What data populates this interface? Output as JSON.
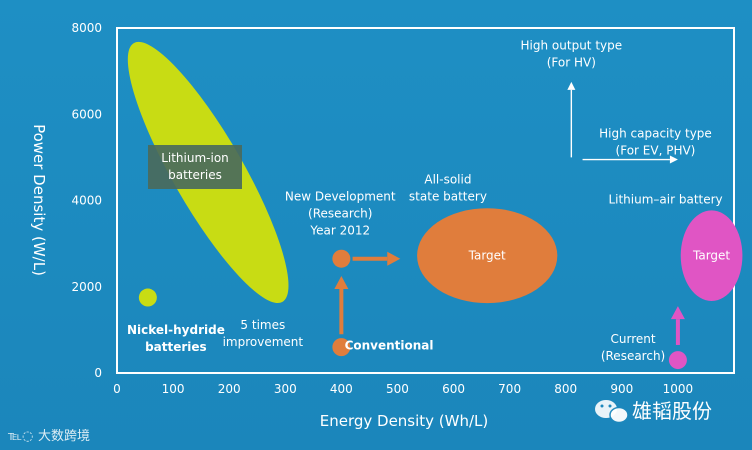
{
  "chart_data": {
    "type": "scatter",
    "xlabel": "Energy Density (Wh/L)",
    "ylabel": "Power Density (W/L)",
    "xlim": [
      0,
      1100
    ],
    "ylim": [
      0,
      8000
    ],
    "x_ticks": [
      0,
      100,
      200,
      300,
      400,
      500,
      600,
      700,
      800,
      900,
      1000
    ],
    "y_ticks": [
      0,
      2000,
      4000,
      6000,
      8000
    ],
    "regions": [
      {
        "name": "lithium-ion-region",
        "label": "Lithium-ion batteries",
        "label_lines": [
          "Lithium-ion",
          "batteries"
        ],
        "shape": "ellipse",
        "from": [
          30,
          7650
        ],
        "to": [
          295,
          1650
        ],
        "width": 11,
        "color": "#c8dc14"
      },
      {
        "name": "all-solid-state-target",
        "label": "Target",
        "shape": "ellipse",
        "center": [
          660,
          2720
        ],
        "rx": 125,
        "ry": 1100,
        "color": "#e07d3c"
      },
      {
        "name": "lithium-air-target",
        "label": "Target",
        "shape": "ellipse",
        "center": [
          1060,
          2720
        ],
        "rx": 55,
        "ry": 1050,
        "color": "#e055c4"
      }
    ],
    "points": [
      {
        "name": "nickel-hydride-point",
        "x": 55,
        "y": 1750,
        "color": "#c8dc14"
      },
      {
        "name": "new-development-point",
        "x": 400,
        "y": 2650,
        "color": "#e07d3c"
      },
      {
        "name": "conventional-point",
        "x": 400,
        "y": 600,
        "color": "#e07d3c"
      },
      {
        "name": "current-research-point",
        "x": 1000,
        "y": 300,
        "color": "#e055c4"
      }
    ],
    "arrows": [
      {
        "name": "improvement-arrow",
        "from": [
          400,
          900
        ],
        "to": [
          400,
          2250
        ],
        "color": "#e07d3c"
      },
      {
        "name": "development-arrow",
        "from": [
          420,
          2650
        ],
        "to": [
          505,
          2650
        ],
        "color": "#e07d3c"
      },
      {
        "name": "lithium-air-arrow",
        "from": [
          1000,
          650
        ],
        "to": [
          1000,
          1550
        ],
        "color": "#e055c4"
      },
      {
        "name": "output-axis-arrow",
        "from": [
          810,
          5000
        ],
        "to": [
          810,
          6750
        ],
        "color": "#ffffff"
      },
      {
        "name": "capacity-axis-arrow",
        "from": [
          830,
          4950
        ],
        "to": [
          1000,
          4950
        ],
        "color": "#ffffff"
      }
    ],
    "annotations": [
      {
        "name": "nickel-hydride-label",
        "lines": [
          "Nickel-hydride",
          "batteries"
        ],
        "x": 105,
        "y": 900,
        "bold": true
      },
      {
        "name": "five-times-label",
        "lines": [
          "5 times",
          "improvement"
        ],
        "x": 260,
        "y": 1020
      },
      {
        "name": "new-development-label",
        "lines": [
          "New Development",
          "(Research)",
          "Year 2012"
        ],
        "x": 398,
        "y": 4000
      },
      {
        "name": "conventional-label",
        "lines": [
          "Conventional"
        ],
        "x": 485,
        "y": 550,
        "bold": true
      },
      {
        "name": "all-solid-state-label",
        "lines": [
          "All-solid",
          "state battery"
        ],
        "x": 590,
        "y": 4400
      },
      {
        "name": "lithium-air-label",
        "lines": [
          "Lithium–air battery"
        ],
        "x": 978,
        "y": 3930
      },
      {
        "name": "current-research-label",
        "lines": [
          "Current",
          "(Research)"
        ],
        "x": 920,
        "y": 700
      },
      {
        "name": "high-output-label",
        "lines": [
          "High output type",
          "(For HV)"
        ],
        "x": 810,
        "y": 7500
      },
      {
        "name": "high-capacity-label",
        "lines": [
          "High capacity type",
          "(For EV, PHV)"
        ],
        "x": 960,
        "y": 5460
      }
    ]
  },
  "watermarks": {
    "brand": "雄韬股份",
    "site": "大数跨境"
  },
  "colors": {
    "frame": "#ffffff",
    "text": "#ffffff",
    "dark_text": "#1d2f40",
    "label_box": "#4a6a5c"
  }
}
